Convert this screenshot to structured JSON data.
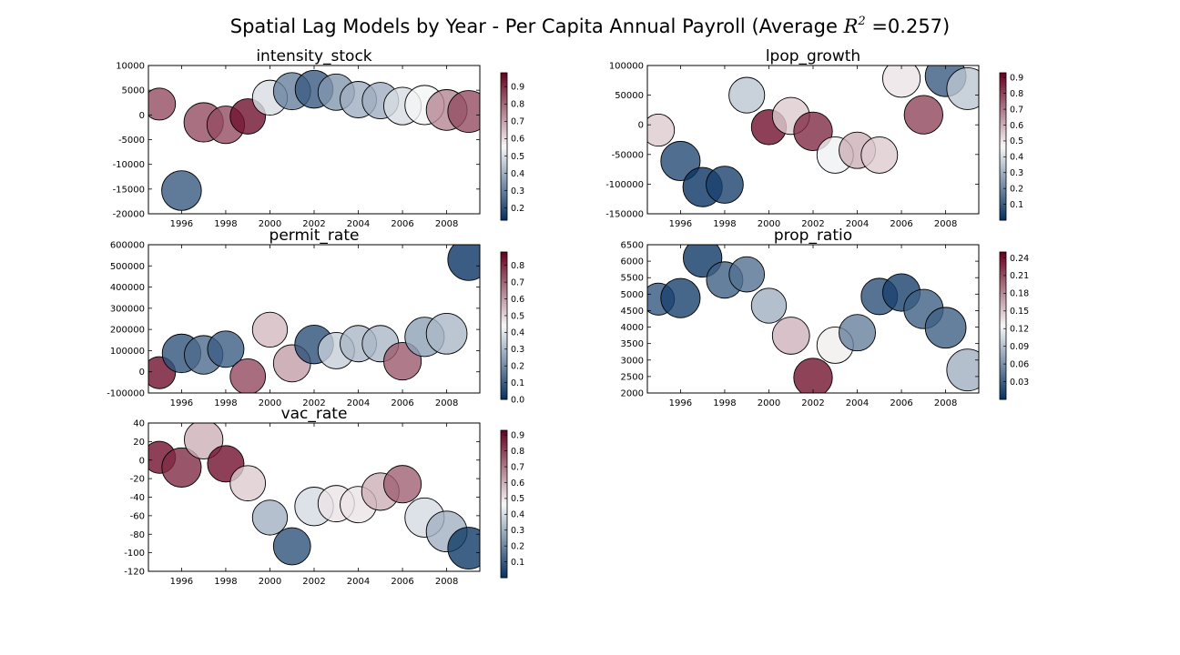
{
  "figure": {
    "title_prefix": "Spatial Lag Models by Year - Per Capita Annual Payroll  (Average ",
    "title_r2": "R",
    "title_r2_sup": "2",
    "title_suffix": " =0.257)"
  },
  "colormap": {
    "low": "#053061",
    "mid": "#f7f7f7",
    "high": "#67001f"
  },
  "chart_data": [
    {
      "type": "scatter",
      "title": "intensity_stock",
      "xlim": [
        1994.5,
        2009.5
      ],
      "ylim": [
        -20000,
        10000
      ],
      "xticks": [
        1996,
        1998,
        2000,
        2002,
        2004,
        2006,
        2008
      ],
      "yticks": [
        -20000,
        -15000,
        -10000,
        -5000,
        0,
        5000,
        10000
      ],
      "colorbar": {
        "min": 0.13,
        "max": 0.98,
        "ticks": [
          0.2,
          0.3,
          0.4,
          0.5,
          0.6,
          0.7,
          0.8,
          0.9
        ]
      },
      "points": [
        {
          "x": 1995,
          "y": 2200,
          "c": 0.85,
          "s": 0.55
        },
        {
          "x": 1996,
          "y": -15300,
          "c": 0.22,
          "s": 0.9
        },
        {
          "x": 1997,
          "y": -1500,
          "c": 0.85,
          "s": 0.88
        },
        {
          "x": 1998,
          "y": -2000,
          "c": 0.85,
          "s": 0.8
        },
        {
          "x": 1999,
          "y": -300,
          "c": 0.95,
          "s": 0.7
        },
        {
          "x": 2000,
          "y": 3500,
          "c": 0.5,
          "s": 0.68
        },
        {
          "x": 2001,
          "y": 4800,
          "c": 0.3,
          "s": 0.78
        },
        {
          "x": 2002,
          "y": 5200,
          "c": 0.22,
          "s": 0.82
        },
        {
          "x": 2003,
          "y": 4600,
          "c": 0.35,
          "s": 0.75
        },
        {
          "x": 2004,
          "y": 3100,
          "c": 0.4,
          "s": 0.75
        },
        {
          "x": 2005,
          "y": 2900,
          "c": 0.4,
          "s": 0.75
        },
        {
          "x": 2006,
          "y": 1800,
          "c": 0.5,
          "s": 0.8
        },
        {
          "x": 2007,
          "y": 2000,
          "c": 0.55,
          "s": 0.88
        },
        {
          "x": 2008,
          "y": 1000,
          "c": 0.75,
          "s": 0.95
        },
        {
          "x": 2009,
          "y": 700,
          "c": 0.85,
          "s": 1.0
        }
      ]
    },
    {
      "type": "scatter",
      "title": "lpop_growth",
      "xlim": [
        1994.5,
        2009.5
      ],
      "ylim": [
        -150000,
        100000
      ],
      "xticks": [
        1996,
        1998,
        2000,
        2002,
        2004,
        2006,
        2008
      ],
      "yticks": [
        -150000,
        -100000,
        -50000,
        0,
        50000,
        100000
      ],
      "colorbar": {
        "min": 0.0,
        "max": 0.93,
        "ticks": [
          0.1,
          0.2,
          0.3,
          0.4,
          0.5,
          0.6,
          0.7,
          0.8,
          0.9
        ]
      },
      "points": [
        {
          "x": 1995,
          "y": -9000,
          "c": 0.55,
          "s": 0.55
        },
        {
          "x": 1996,
          "y": -61000,
          "c": 0.06,
          "s": 0.88
        },
        {
          "x": 1997,
          "y": -105000,
          "c": 0.01,
          "s": 0.88
        },
        {
          "x": 1998,
          "y": -101000,
          "c": 0.04,
          "s": 0.78
        },
        {
          "x": 1999,
          "y": 50000,
          "c": 0.35,
          "s": 0.72
        },
        {
          "x": 2000,
          "y": -4000,
          "c": 0.9,
          "s": 0.68
        },
        {
          "x": 2001,
          "y": 15000,
          "c": 0.55,
          "s": 0.78
        },
        {
          "x": 2002,
          "y": -11000,
          "c": 0.85,
          "s": 0.85
        },
        {
          "x": 2003,
          "y": -51000,
          "c": 0.45,
          "s": 0.75
        },
        {
          "x": 2004,
          "y": -43000,
          "c": 0.6,
          "s": 0.75
        },
        {
          "x": 2005,
          "y": -51000,
          "c": 0.55,
          "s": 0.75
        },
        {
          "x": 2006,
          "y": 78000,
          "c": 0.5,
          "s": 0.8
        },
        {
          "x": 2007,
          "y": 17000,
          "c": 0.8,
          "s": 0.85
        },
        {
          "x": 2008,
          "y": 82000,
          "c": 0.1,
          "s": 0.95
        },
        {
          "x": 2009,
          "y": 61000,
          "c": 0.35,
          "s": 1.0
        }
      ]
    },
    {
      "type": "scatter",
      "title": "permit_rate",
      "xlim": [
        1994.5,
        2009.5
      ],
      "ylim": [
        -100000,
        600000
      ],
      "xticks": [
        1996,
        1998,
        2000,
        2002,
        2004,
        2006,
        2008
      ],
      "yticks": [
        -100000,
        0,
        100000,
        200000,
        300000,
        400000,
        500000,
        600000
      ],
      "colorbar": {
        "min": 0.0,
        "max": 0.88,
        "ticks": [
          0.0,
          0.1,
          0.2,
          0.3,
          0.4,
          0.5,
          0.6,
          0.7,
          0.8
        ]
      },
      "points": [
        {
          "x": 1995,
          "y": -4000,
          "c": 0.85,
          "s": 0.55
        },
        {
          "x": 1996,
          "y": 87000,
          "c": 0.08,
          "s": 0.85
        },
        {
          "x": 1997,
          "y": 80000,
          "c": 0.13,
          "s": 0.85
        },
        {
          "x": 1998,
          "y": 107000,
          "c": 0.1,
          "s": 0.75
        },
        {
          "x": 1999,
          "y": -22000,
          "c": 0.75,
          "s": 0.7
        },
        {
          "x": 2000,
          "y": 199000,
          "c": 0.55,
          "s": 0.68
        },
        {
          "x": 2001,
          "y": 40000,
          "c": 0.6,
          "s": 0.78
        },
        {
          "x": 2002,
          "y": 129000,
          "c": 0.07,
          "s": 0.85
        },
        {
          "x": 2003,
          "y": 100000,
          "c": 0.35,
          "s": 0.75
        },
        {
          "x": 2004,
          "y": 133000,
          "c": 0.3,
          "s": 0.75
        },
        {
          "x": 2005,
          "y": 133000,
          "c": 0.3,
          "s": 0.75
        },
        {
          "x": 2006,
          "y": 50000,
          "c": 0.72,
          "s": 0.8
        },
        {
          "x": 2007,
          "y": 165000,
          "c": 0.25,
          "s": 0.88
        },
        {
          "x": 2008,
          "y": 180000,
          "c": 0.3,
          "s": 0.95
        },
        {
          "x": 2009,
          "y": 530000,
          "c": 0.01,
          "s": 1.0
        }
      ]
    },
    {
      "type": "scatter",
      "title": "prop_ratio",
      "xlim": [
        1994.5,
        2009.5
      ],
      "ylim": [
        2000,
        6500
      ],
      "xticks": [
        1996,
        1998,
        2000,
        2002,
        2004,
        2006,
        2008
      ],
      "yticks": [
        2000,
        2500,
        3000,
        3500,
        4000,
        4500,
        5000,
        5500,
        6000,
        6500
      ],
      "colorbar": {
        "min": 0.0,
        "max": 0.25,
        "ticks": [
          0.03,
          0.06,
          0.09,
          0.12,
          0.15,
          0.18,
          0.21,
          0.24
        ]
      },
      "points": [
        {
          "x": 1995,
          "y": 4850,
          "c": 0.025,
          "s": 0.55
        },
        {
          "x": 1996,
          "y": 4880,
          "c": 0.01,
          "s": 0.88
        },
        {
          "x": 1997,
          "y": 6100,
          "c": 0.005,
          "s": 0.85
        },
        {
          "x": 1998,
          "y": 5430,
          "c": 0.03,
          "s": 0.75
        },
        {
          "x": 1999,
          "y": 5600,
          "c": 0.04,
          "s": 0.7
        },
        {
          "x": 2000,
          "y": 4650,
          "c": 0.08,
          "s": 0.68
        },
        {
          "x": 2001,
          "y": 3740,
          "c": 0.16,
          "s": 0.78
        },
        {
          "x": 2002,
          "y": 2470,
          "c": 0.24,
          "s": 0.85
        },
        {
          "x": 2003,
          "y": 3450,
          "c": 0.13,
          "s": 0.75
        },
        {
          "x": 2004,
          "y": 3830,
          "c": 0.05,
          "s": 0.75
        },
        {
          "x": 2005,
          "y": 4930,
          "c": 0.02,
          "s": 0.75
        },
        {
          "x": 2006,
          "y": 5050,
          "c": 0.01,
          "s": 0.8
        },
        {
          "x": 2007,
          "y": 4550,
          "c": 0.03,
          "s": 0.88
        },
        {
          "x": 2008,
          "y": 3980,
          "c": 0.03,
          "s": 0.95
        },
        {
          "x": 2009,
          "y": 2700,
          "c": 0.08,
          "s": 1.0
        }
      ]
    },
    {
      "type": "scatter",
      "title": "vac_rate",
      "xlim": [
        1994.5,
        2009.5
      ],
      "ylim": [
        -120,
        40
      ],
      "xticks": [
        1996,
        1998,
        2000,
        2002,
        2004,
        2006,
        2008
      ],
      "yticks": [
        -120,
        -100,
        -80,
        -60,
        -40,
        -20,
        0,
        20,
        40
      ],
      "colorbar": {
        "min": 0.0,
        "max": 0.93,
        "ticks": [
          0.1,
          0.2,
          0.3,
          0.4,
          0.5,
          0.6,
          0.7,
          0.8,
          0.9
        ]
      },
      "points": [
        {
          "x": 1995,
          "y": 3,
          "c": 0.9,
          "s": 0.55
        },
        {
          "x": 1996,
          "y": -8,
          "c": 0.85,
          "s": 0.88
        },
        {
          "x": 1997,
          "y": 22,
          "c": 0.6,
          "s": 0.85
        },
        {
          "x": 1998,
          "y": -4,
          "c": 0.9,
          "s": 0.75
        },
        {
          "x": 1999,
          "y": -25,
          "c": 0.55,
          "s": 0.7
        },
        {
          "x": 2000,
          "y": -62,
          "c": 0.3,
          "s": 0.68
        },
        {
          "x": 2001,
          "y": -93,
          "c": 0.08,
          "s": 0.78
        },
        {
          "x": 2002,
          "y": -50,
          "c": 0.4,
          "s": 0.85
        },
        {
          "x": 2003,
          "y": -47,
          "c": 0.5,
          "s": 0.75
        },
        {
          "x": 2004,
          "y": -48,
          "c": 0.5,
          "s": 0.75
        },
        {
          "x": 2005,
          "y": -34,
          "c": 0.6,
          "s": 0.8
        },
        {
          "x": 2006,
          "y": -26,
          "c": 0.75,
          "s": 0.8
        },
        {
          "x": 2007,
          "y": -62,
          "c": 0.4,
          "s": 0.88
        },
        {
          "x": 2008,
          "y": -77,
          "c": 0.3,
          "s": 0.95
        },
        {
          "x": 2009,
          "y": -95,
          "c": 0.02,
          "s": 1.0
        }
      ]
    }
  ]
}
